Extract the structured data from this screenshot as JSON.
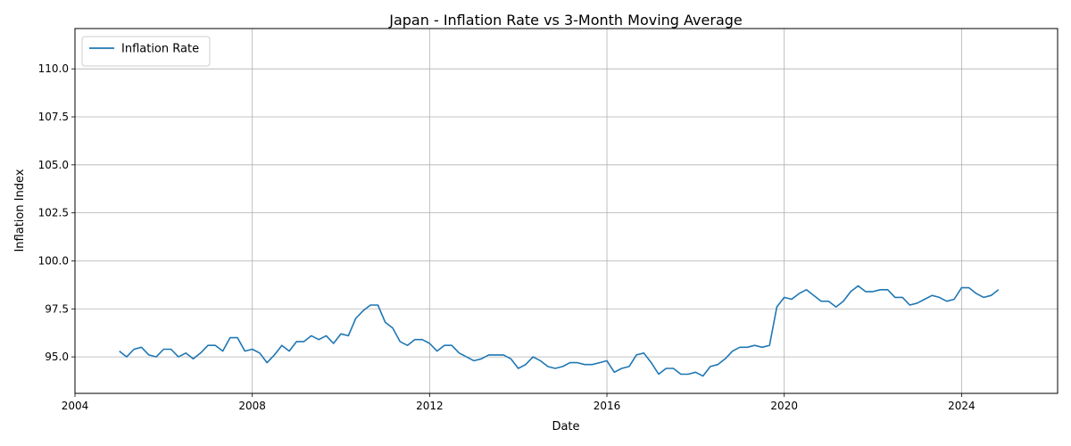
{
  "chart_data": {
    "type": "line",
    "title": "Japan - Inflation Rate vs 3-Month Moving Average",
    "xlabel": "Date",
    "ylabel": "Inflation Index",
    "xlim": [
      "2004-01-01",
      "2026-03-01"
    ],
    "ylim": [
      93.1,
      112.1
    ],
    "x_ticks": [
      "2004",
      "2008",
      "2012",
      "2016",
      "2020",
      "2024"
    ],
    "y_ticks": [
      "95.0",
      "97.5",
      "100.0",
      "102.5",
      "105.0",
      "107.5",
      "110.0"
    ],
    "grid": true,
    "legend_position": "upper-left",
    "colors": {
      "inflation": "#1f77b4",
      "ma": "#ff7f0e"
    },
    "series": [
      {
        "name": "Inflation Rate",
        "color": "#1f77b4",
        "points": [
          [
            "2005-01",
            95.3
          ],
          [
            "2005-03",
            95.0
          ],
          [
            "2005-05",
            95.4
          ],
          [
            "2005-07",
            95.5
          ],
          [
            "2005-09",
            95.1
          ],
          [
            "2005-11",
            95.0
          ],
          [
            "2006-01",
            95.4
          ],
          [
            "2006-03",
            95.4
          ],
          [
            "2006-05",
            95.0
          ],
          [
            "2006-07",
            95.2
          ],
          [
            "2006-09",
            94.9
          ],
          [
            "2006-11",
            95.2
          ],
          [
            "2007-01",
            95.6
          ],
          [
            "2007-03",
            95.6
          ],
          [
            "2007-05",
            95.3
          ],
          [
            "2007-07",
            96.0
          ],
          [
            "2007-09",
            96.0
          ],
          [
            "2007-11",
            95.3
          ],
          [
            "2008-01",
            95.4
          ],
          [
            "2008-03",
            95.2
          ],
          [
            "2008-05",
            94.7
          ],
          [
            "2008-07",
            95.1
          ],
          [
            "2008-09",
            95.6
          ],
          [
            "2008-11",
            95.3
          ],
          [
            "2009-01",
            95.8
          ],
          [
            "2009-03",
            95.8
          ],
          [
            "2009-05",
            96.1
          ],
          [
            "2009-07",
            95.9
          ],
          [
            "2009-09",
            96.1
          ],
          [
            "2009-11",
            95.7
          ],
          [
            "2010-01",
            96.2
          ],
          [
            "2010-03",
            96.1
          ],
          [
            "2010-05",
            97.0
          ],
          [
            "2010-07",
            97.4
          ],
          [
            "2010-09",
            97.7
          ],
          [
            "2010-11",
            97.7
          ],
          [
            "2011-01",
            96.8
          ],
          [
            "2011-03",
            96.5
          ],
          [
            "2011-05",
            95.8
          ],
          [
            "2011-07",
            95.6
          ],
          [
            "2011-09",
            95.9
          ],
          [
            "2011-11",
            95.9
          ],
          [
            "2012-01",
            95.7
          ],
          [
            "2012-03",
            95.3
          ],
          [
            "2012-05",
            95.6
          ],
          [
            "2012-07",
            95.6
          ],
          [
            "2012-09",
            95.2
          ],
          [
            "2012-11",
            95.0
          ],
          [
            "2013-01",
            94.8
          ],
          [
            "2013-03",
            94.9
          ],
          [
            "2013-05",
            95.1
          ],
          [
            "2013-07",
            95.1
          ],
          [
            "2013-09",
            95.1
          ],
          [
            "2013-11",
            94.9
          ],
          [
            "2014-01",
            94.4
          ],
          [
            "2014-03",
            94.6
          ],
          [
            "2014-05",
            95.0
          ],
          [
            "2014-07",
            94.8
          ],
          [
            "2014-09",
            94.5
          ],
          [
            "2014-11",
            94.4
          ],
          [
            "2015-01",
            94.5
          ],
          [
            "2015-03",
            94.7
          ],
          [
            "2015-05",
            94.7
          ],
          [
            "2015-07",
            94.6
          ],
          [
            "2015-09",
            94.6
          ],
          [
            "2015-11",
            94.7
          ],
          [
            "2016-01",
            94.8
          ],
          [
            "2016-03",
            94.2
          ],
          [
            "2016-05",
            94.4
          ],
          [
            "2016-07",
            94.5
          ],
          [
            "2016-09",
            95.1
          ],
          [
            "2016-11",
            95.2
          ],
          [
            "2017-01",
            94.7
          ],
          [
            "2017-03",
            94.1
          ],
          [
            "2017-05",
            94.4
          ],
          [
            "2017-07",
            94.4
          ],
          [
            "2017-09",
            94.1
          ],
          [
            "2017-11",
            94.1
          ],
          [
            "2018-01",
            94.2
          ],
          [
            "2018-03",
            94.0
          ],
          [
            "2018-05",
            94.5
          ],
          [
            "2018-07",
            94.6
          ],
          [
            "2018-09",
            94.9
          ],
          [
            "2018-11",
            95.3
          ],
          [
            "2019-01",
            95.5
          ],
          [
            "2019-03",
            95.5
          ],
          [
            "2019-05",
            95.6
          ],
          [
            "2019-07",
            95.5
          ],
          [
            "2019-09",
            95.6
          ],
          [
            "2019-11",
            97.6
          ],
          [
            "2020-01",
            98.1
          ],
          [
            "2020-03",
            98.0
          ],
          [
            "2020-05",
            98.3
          ],
          [
            "2020-07",
            98.5
          ],
          [
            "2020-09",
            98.2
          ],
          [
            "2020-11",
            97.9
          ],
          [
            "2021-01",
            97.9
          ],
          [
            "2021-03",
            97.6
          ],
          [
            "2021-05",
            97.9
          ],
          [
            "2021-07",
            98.4
          ],
          [
            "2021-09",
            98.7
          ],
          [
            "2021-11",
            98.4
          ],
          [
            "2022-01",
            98.4
          ],
          [
            "2022-03",
            98.5
          ],
          [
            "2022-05",
            98.5
          ],
          [
            "2022-07",
            98.1
          ],
          [
            "2022-09",
            98.1
          ],
          [
            "2022-11",
            97.7
          ],
          [
            "2023-01",
            97.8
          ],
          [
            "2023-03",
            98.0
          ],
          [
            "2023-05",
            98.2
          ],
          [
            "2023-07",
            98.1
          ],
          [
            "2023-09",
            97.9
          ],
          [
            "2023-11",
            98.0
          ],
          [
            "2024-01",
            98.6
          ],
          [
            "2024-03",
            98.6
          ],
          [
            "2024-05",
            98.3
          ],
          [
            "2024-07",
            98.1
          ],
          [
            "2024-09",
            98.2
          ],
          [
            "2024-11",
            98.5
          ]
        ]
      }
    ]
  }
}
